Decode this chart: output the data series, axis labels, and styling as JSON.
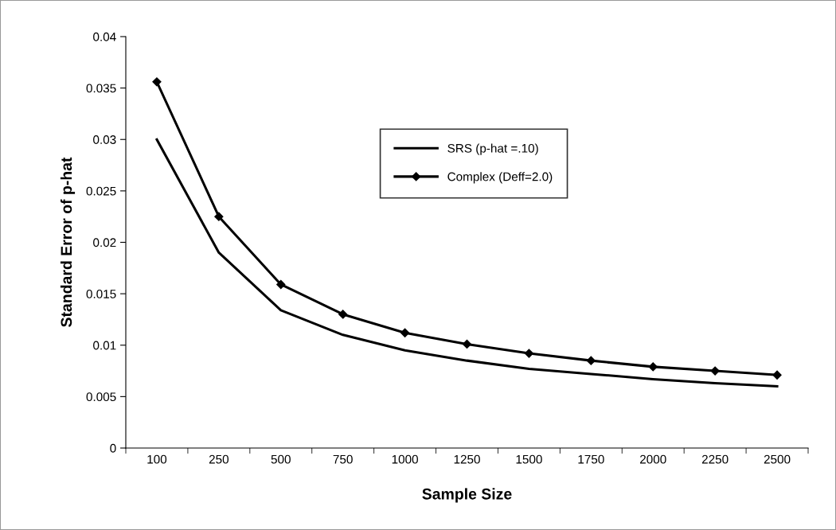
{
  "chart_data": {
    "type": "line",
    "xlabel": "Sample Size",
    "ylabel": "Standard Error of p-hat",
    "categories": [
      "100",
      "250",
      "500",
      "750",
      "1000",
      "1250",
      "1500",
      "1750",
      "2000",
      "2250",
      "2500"
    ],
    "series": [
      {
        "name": "SRS (p-hat =.10)",
        "color": "#000000",
        "marker": "none",
        "values": [
          0.03,
          0.019,
          0.0134,
          0.011,
          0.0095,
          0.0085,
          0.0077,
          0.0072,
          0.0067,
          0.0063,
          0.006
        ]
      },
      {
        "name": "Complex (Deff=2.0)",
        "color": "#000000",
        "marker": "diamond",
        "values": [
          0.0356,
          0.0225,
          0.0159,
          0.013,
          0.0112,
          0.0101,
          0.0092,
          0.0085,
          0.0079,
          0.0075,
          0.0071
        ]
      }
    ],
    "ylim": [
      0,
      0.04
    ],
    "yticks": [
      0,
      0.005,
      0.01,
      0.015,
      0.02,
      0.025,
      0.03,
      0.035,
      0.04
    ],
    "grid": false,
    "legend": "top",
    "line_style": "solid"
  }
}
